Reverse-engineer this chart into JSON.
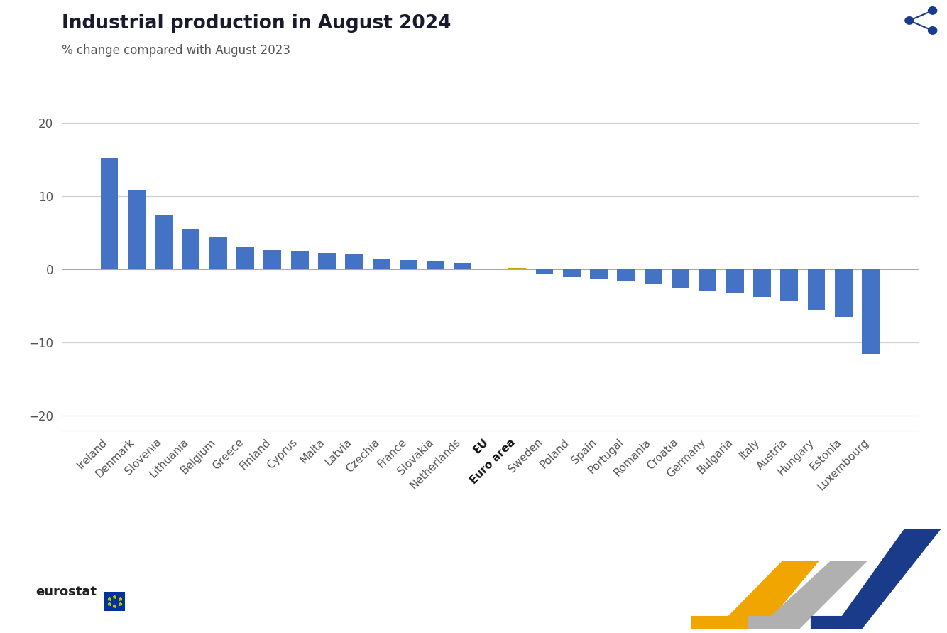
{
  "title": "Industrial production in August 2024",
  "subtitle": "% change compared with August 2023",
  "categories": [
    "Ireland",
    "Denmark",
    "Slovenia",
    "Lithuania",
    "Belgium",
    "Greece",
    "Finland",
    "Cyprus",
    "Malta",
    "Latvia",
    "Czechia",
    "France",
    "Slovakia",
    "Netherlands",
    "EU",
    "Euro area",
    "Sweden",
    "Poland",
    "Spain",
    "Portugal",
    "Romania",
    "Croatia",
    "Germany",
    "Bulgaria",
    "Italy",
    "Austria",
    "Hungary",
    "Estonia",
    "Luxembourg"
  ],
  "values": [
    15.2,
    10.8,
    7.5,
    5.5,
    4.5,
    3.0,
    2.7,
    2.5,
    2.3,
    2.2,
    1.4,
    1.3,
    1.1,
    0.9,
    0.1,
    0.2,
    -0.5,
    -1.0,
    -1.3,
    -1.5,
    -2.0,
    -2.5,
    -3.0,
    -3.3,
    -3.8,
    -4.2,
    -5.5,
    -6.5,
    -11.5
  ],
  "bar_color_normal": "#4472c4",
  "bar_color_euroarea": "#c8a013",
  "bold_labels": [
    "EU",
    "Euro area"
  ],
  "ylim": [
    -22,
    23
  ],
  "yticks": [
    -20,
    -10,
    0,
    10,
    20
  ],
  "background_color": "#ffffff",
  "grid_color": "#d0d0d0",
  "title_color": "#1a1a2e",
  "subtitle_color": "#555555",
  "tick_label_color": "#555555",
  "title_fontsize": 19,
  "subtitle_fontsize": 12,
  "tick_fontsize": 11,
  "ytick_fontsize": 12
}
